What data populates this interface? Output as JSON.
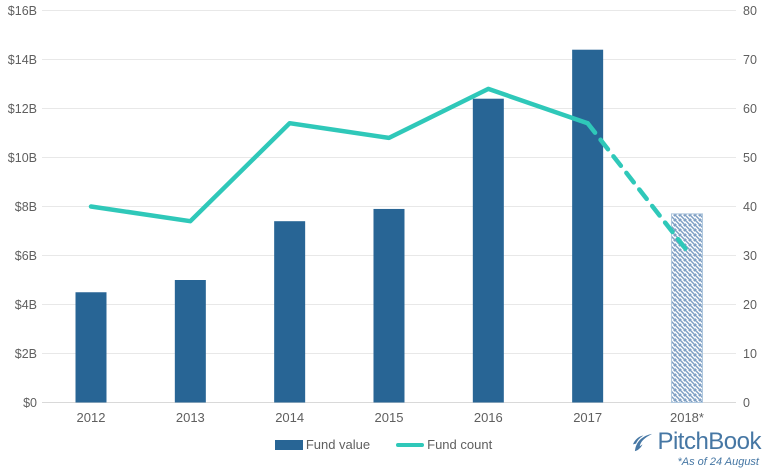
{
  "chart_data": {
    "type": "combo",
    "title": "",
    "categories": [
      "2012",
      "2013",
      "2014",
      "2015",
      "2016",
      "2017",
      "2018*"
    ],
    "series": [
      {
        "name": "Fund value",
        "type": "bar",
        "unit": "$B",
        "values": [
          4.5,
          5.0,
          7.4,
          7.9,
          12.4,
          14.4,
          7.7
        ],
        "axis": "left",
        "note": "2018* bar drawn with diagonal hatch pattern (partial-year estimate)"
      },
      {
        "name": "Fund count",
        "type": "line",
        "values": [
          40,
          37,
          57,
          54,
          64,
          57,
          31
        ],
        "axis": "right",
        "note": "segment from 2017 to 2018* drawn dashed (partial-year estimate)"
      }
    ],
    "left_axis": {
      "ticks": [
        "$0",
        "$2B",
        "$4B",
        "$6B",
        "$8B",
        "$10B",
        "$12B",
        "$14B",
        "$16B"
      ],
      "min": 0,
      "max": 16
    },
    "right_axis": {
      "ticks": [
        "0",
        "10",
        "20",
        "30",
        "40",
        "50",
        "60",
        "70",
        "80"
      ],
      "min": 0,
      "max": 80
    },
    "grid": true,
    "legend_position": "bottom-center"
  },
  "legend": {
    "fund_value": "Fund value",
    "fund_count": "Fund count"
  },
  "branding": {
    "logo_text": "PitchBook",
    "as_of_note": "*As of 24 August"
  },
  "colors": {
    "bar": "#286595",
    "bar_hatch": "#7E9FC4",
    "bar_hatch_border": "#AFC7DD",
    "line": "#2FC8B9",
    "grid": "#E8E8E8",
    "baseline": "#D9D9D9",
    "axis_text": "#5F5F5F",
    "logo": "#4677A4"
  }
}
